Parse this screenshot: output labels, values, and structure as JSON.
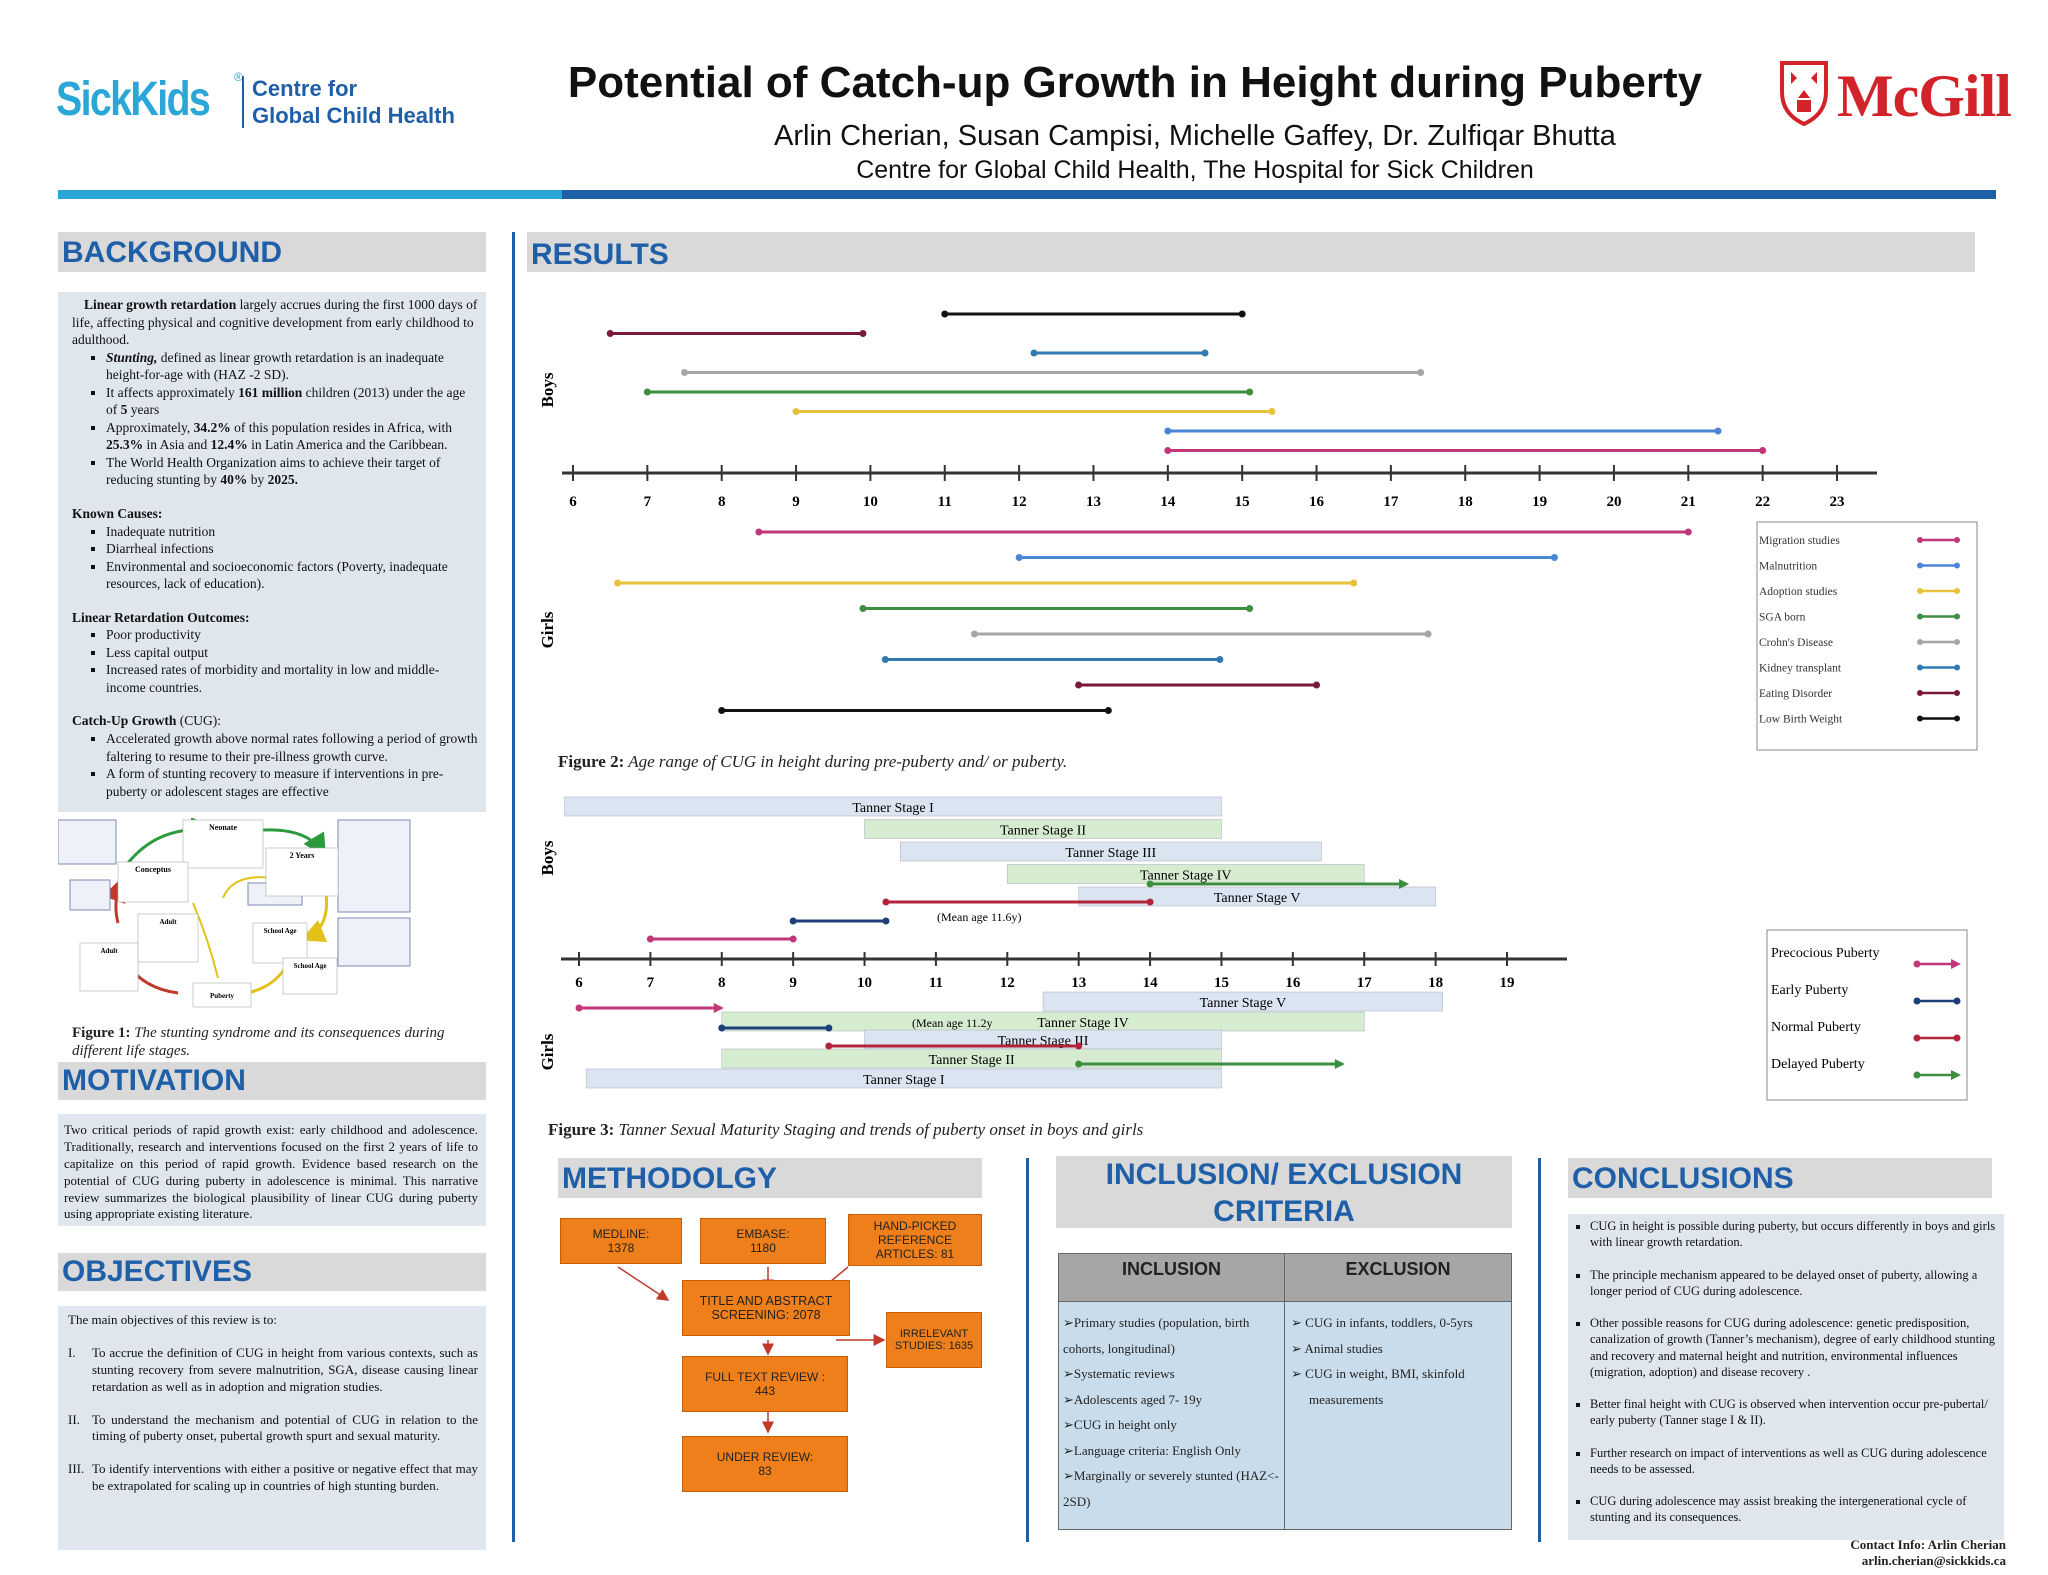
{
  "header": {
    "logo_left": {
      "brand": "SickKids",
      "reg": "®",
      "line1": "Centre for",
      "line2": "Global Child Health"
    },
    "title": "Potential of Catch-up Growth in Height during Puberty",
    "authors": "Arlin Cherian, Susan Campisi, Michelle Gaffey, Dr. Zulfiqar Bhutta",
    "affiliation": "Centre for Global Child Health, The Hospital for Sick Children",
    "logo_right": "McGill"
  },
  "colors": {
    "blue": "#1f5fa8",
    "cyan": "#2aa7d6",
    "orange": "#ef7f1a",
    "panel": "#dfe6ee",
    "header_gray": "#d9d9d9"
  },
  "background": {
    "heading": "BACKGROUND",
    "intro_bold": "Linear growth retardation",
    "intro_rest": " largely accrues during the first 1000 days of life, affecting physical and cognitive development from  early childhood to adulthood.",
    "bullets": [
      {
        "b": "Stunting,",
        "t": " defined as linear growth retardation is an inadequate height-for-age with (HAZ -2 SD)."
      },
      {
        "pre": "It affects approximately ",
        "b": "161 million",
        "t": " children (2013) under the age of ",
        "b2": "5",
        "t2": " years"
      },
      {
        "pre": "Approximately, ",
        "b": "34.2%",
        "t": " of this population resides in Africa, with ",
        "b2": "25.3%",
        "t2": " in Asia and ",
        "b3": "12.4%",
        "t3": " in Latin America and the Caribbean."
      },
      {
        "pre": "The World Health Organization aims to achieve their target of reducing stunting by ",
        "b": "40%",
        "t": " by ",
        "b2": "2025."
      }
    ],
    "causes_title": "Known Causes:",
    "causes": [
      "Inadequate nutrition",
      "Diarrheal infections",
      "Environmental and socioeconomic factors (Poverty, inadequate resources, lack of education)."
    ],
    "outcomes_title": "Linear Retardation Outcomes:",
    "outcomes": [
      "Poor productivity",
      "Less capital output",
      "Increased rates of morbidity and mortality in low and middle-income countries."
    ],
    "cug_title": "Catch-Up Growth",
    "cug_title_rest": " (CUG):",
    "cug": [
      "Accelerated growth above normal rates following a period of growth faltering to resume to their pre-illness growth curve.",
      "A form of stunting recovery to measure if interventions in pre-puberty or adolescent stages are effective"
    ]
  },
  "figure1": {
    "nodes": [
      "Neonate",
      "Conceptus",
      "2 Years",
      "Adult",
      "School Age",
      "School Age",
      "Puberty",
      "Adult"
    ],
    "caption_bold": "Figure 1:",
    "caption": "  The stunting syndrome and its consequences during different life stages."
  },
  "motivation": {
    "heading": "MOTIVATION",
    "text": "Two critical periods of rapid growth exist: early childhood and adolescence. Traditionally, research and interventions focused on the first 2 years of life to capitalize on this period of rapid growth. Evidence based research on the potential of CUG during puberty in adolescence is minimal. This narrative review summarizes the biological plausibility of linear CUG during puberty using appropriate existing literature."
  },
  "objectives": {
    "heading": "OBJECTIVES",
    "intro": "The main objectives of this review is to:",
    "items": [
      {
        "n": "I.",
        "t": "To accrue the definition of CUG in height from various contexts, such as stunting recovery from severe malnutrition, SGA, disease causing linear retardation as well as in adoption and migration studies."
      },
      {
        "n": "II.",
        "t": "To understand the mechanism and potential of CUG in relation to the timing of puberty onset, pubertal growth spurt and sexual maturity."
      },
      {
        "n": "III.",
        "t": "To identify interventions with either a positive or negative effect that may be extrapolated for scaling up in countries of high stunting burden."
      }
    ]
  },
  "results": {
    "heading": "RESULTS"
  },
  "chart_data": [
    {
      "type": "range",
      "title": "Age  range of CUG in height  during pre-puberty and/ or puberty.",
      "caption_label": "Figure 2:",
      "x_ticks": [
        6,
        7,
        8,
        9,
        10,
        11,
        12,
        13,
        14,
        15,
        16,
        17,
        18,
        19,
        20,
        21,
        22,
        23
      ],
      "group_labels": [
        "Boys",
        "Girls"
      ],
      "legend": [
        {
          "name": "Migration studies",
          "color": "#c2367a"
        },
        {
          "name": "Malnutrition",
          "color": "#4a86d6"
        },
        {
          "name": "Adoption studies",
          "color": "#e8c13b"
        },
        {
          "name": "SGA born",
          "color": "#3e8e41"
        },
        {
          "name": "Crohn's Disease",
          "color": "#a6a6a6"
        },
        {
          "name": "Kidney transplant",
          "color": "#2f7bb0"
        },
        {
          "name": "Eating Disorder",
          "color": "#7a1a3a"
        },
        {
          "name": "Low Birth Weight",
          "color": "#111111"
        }
      ],
      "boys": [
        {
          "series": "Low Birth Weight",
          "start": 11,
          "end": 15
        },
        {
          "series": "Eating Disorder",
          "start": 6.5,
          "end": 9.9
        },
        {
          "series": "Kidney transplant",
          "start": 12.2,
          "end": 14.5
        },
        {
          "series": "Crohn's Disease",
          "start": 7.5,
          "end": 17.4
        },
        {
          "series": "SGA born",
          "start": 7,
          "end": 15.1
        },
        {
          "series": "Adoption studies",
          "start": 9,
          "end": 15.4
        },
        {
          "series": "Malnutrition",
          "start": 14,
          "end": 21.4
        },
        {
          "series": "Migration studies",
          "start": 14,
          "end": 22
        }
      ],
      "girls": [
        {
          "series": "Migration studies",
          "start": 8.5,
          "end": 21
        },
        {
          "series": "Malnutrition",
          "start": 12,
          "end": 19.2
        },
        {
          "series": "Adoption studies",
          "start": 6.6,
          "end": 16.5
        },
        {
          "series": "SGA born",
          "start": 9.9,
          "end": 15.1
        },
        {
          "series": "Crohn's Disease",
          "start": 11.4,
          "end": 17.5
        },
        {
          "series": "Kidney transplant",
          "start": 10.2,
          "end": 14.7
        },
        {
          "series": "Eating Disorder",
          "start": 12.8,
          "end": 16
        },
        {
          "series": "Low Birth Weight",
          "start": 8,
          "end": 13.2
        }
      ]
    },
    {
      "type": "range",
      "title": "Tanner Sexual Maturity Staging and trends of puberty onset in boys and girls",
      "caption_label": "Figure 3:",
      "x_ticks": [
        6,
        7,
        8,
        9,
        10,
        11,
        12,
        13,
        14,
        15,
        16,
        17,
        18,
        19
      ],
      "group_labels": [
        "Boys",
        "Girls"
      ],
      "legend": [
        {
          "name": "Precocious Puberty",
          "color": "#c2367a"
        },
        {
          "name": "Early Puberty",
          "color": "#1c3f7a"
        },
        {
          "name": "Normal Puberty",
          "color": "#b3243a"
        },
        {
          "name": "Delayed Puberty",
          "color": "#3e8e41"
        }
      ],
      "boys_tanner": [
        {
          "label": "Tanner Stage I",
          "start": 5.8,
          "end": 15
        },
        {
          "label": "Tanner  Stage II",
          "start": 10,
          "end": 15
        },
        {
          "label": "Tanner Stage III",
          "start": 10.5,
          "end": 16.4
        },
        {
          "label": "Tanner  Stage IV",
          "start": 12,
          "end": 17
        },
        {
          "label": "Tanner  Stage  V",
          "start": 13,
          "end": 18
        }
      ],
      "boys_puberty": [
        {
          "series": "Delayed Puberty",
          "start": 14,
          "end": 17.6
        },
        {
          "series": "Normal Puberty",
          "start": 10.3,
          "end": 14
        },
        {
          "series": "Early Puberty",
          "start": 9,
          "end": 10.3
        },
        {
          "series": "Precocious Puberty",
          "start": 7,
          "end": 9
        }
      ],
      "boys_note": "(Mean age 11.6y)",
      "girls_tanner": [
        {
          "label": "Tanner  Stage  V",
          "start": 12.5,
          "end": 18.1
        },
        {
          "label": "Tanner  Stage IV",
          "start": 8,
          "end": 17
        },
        {
          "label": "Tanner Stage III",
          "start": 10,
          "end": 15
        },
        {
          "label": "Tanner  Stage II",
          "start": 8,
          "end": 15
        },
        {
          "label": "Tanner Stage I",
          "start": 6.1,
          "end": 15
        }
      ],
      "girls_puberty": [
        {
          "series": "Precocious Puberty",
          "start": 6,
          "end": 8
        },
        {
          "series": "Early Puberty",
          "start": 8,
          "end": 9.5
        },
        {
          "series": "Normal Puberty",
          "start": 9.5,
          "end": 13
        },
        {
          "series": "Delayed Puberty",
          "start": 13,
          "end": 16.7
        }
      ],
      "girls_note": "(Mean age 11.2y"
    }
  ],
  "methodology": {
    "heading": "METHODOLGY",
    "medline": "MEDLINE:",
    "medline_n": "1378",
    "embase": "EMBASE:",
    "embase_n": "1180",
    "handpicked": "HAND-PICKED REFERENCE ARTICLES: 81",
    "screening": "TITLE AND ABSTRACT SCREENING: 2078",
    "irrelevant": "IRRELEVANT STUDIES: 1635",
    "fulltext": "FULL TEXT REVIEW :",
    "fulltext_n": "443",
    "under_review": "UNDER REVIEW:",
    "under_review_n": "83"
  },
  "criteria": {
    "heading": "INCLUSION/ EXCLUSION CRITERIA",
    "inc_head": "INCLUSION",
    "exc_head": "EXCLUSION",
    "inclusion": [
      "Primary studies  (population, birth cohorts, longitudinal)",
      "Systematic reviews",
      "Adolescents aged 7- 19y",
      "CUG in height only",
      "Language criteria: English Only",
      "Marginally or severely stunted (HAZ<- 2SD)"
    ],
    "exclusion": [
      "CUG in infants, toddlers, 0-5yrs",
      "Animal studies",
      "CUG in weight, BMI, skinfold measurements"
    ]
  },
  "conclusions": {
    "heading": "CONCLUSIONS",
    "items": [
      "CUG in height is possible during puberty, but occurs differently in  boys and girls with linear growth retardation.",
      "The principle mechanism appeared to be delayed onset of puberty, allowing a longer period of CUG during adolescence.",
      "Other possible reasons for CUG during adolescence: genetic predisposition, canalization of growth (Tanner’s mechanism), degree of early childhood stunting and recovery and maternal height and nutrition, environmental influences (migration, adoption) and disease recovery .",
      "Better final height with CUG is observed when intervention occur pre-pubertal/ early puberty (Tanner stage  I & II).",
      "Further research on impact of interventions as well as CUG during adolescence needs to be assessed.",
      "CUG during adolescence may assist breaking the intergenerational cycle of stunting and its consequences."
    ],
    "contact": "Contact Info: Arlin Cherian",
    "email": "arlin.cherian@sickkids.ca"
  }
}
